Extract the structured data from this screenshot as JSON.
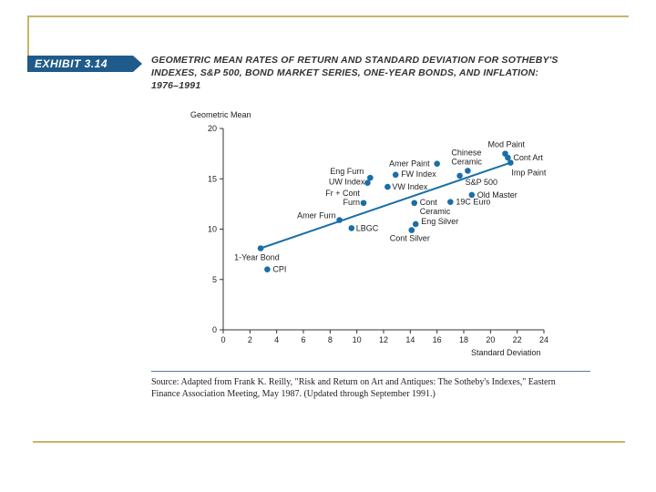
{
  "exhibit": {
    "label": "EXHIBIT 3.14",
    "title_lines": [
      "GEOMETRIC MEAN RATES OF RETURN AND STANDARD DEVIATION FOR SOTHEBY'S",
      "INDEXES, S&P 500, BOND MARKET SERIES, ONE-YEAR BONDS, AND INFLATION:",
      "1976–1991"
    ]
  },
  "source_lines": [
    "Source: Adapted from Frank K. Reilly, \"Risk and Return on Art and Antiques: The Sotheby's Indexes,\" Eastern",
    "Finance Association Meeting, May 1987. (Updated through September 1991.)"
  ],
  "colors": {
    "frame": "#c8b46a",
    "exhibit_bg": "#1f5b8a",
    "point": "#1a6ea8",
    "line": "#1a6ea8",
    "axis": "#333333"
  },
  "chart_data": {
    "type": "scatter",
    "title": "GEOMETRIC MEAN RATES OF RETURN AND STANDARD DEVIATION FOR SOTHEBY'S INDEXES, S&P 500, BOND MARKET SERIES, ONE-YEAR BONDS, AND INFLATION: 1976–1991",
    "xlabel": "Standard Deviation",
    "ylabel": "Geometric Mean",
    "xlim": [
      0,
      24
    ],
    "ylim": [
      0,
      20
    ],
    "xticks": [
      "0",
      "2",
      "4",
      "6",
      "8",
      "10",
      "12",
      "14",
      "16",
      "18",
      "20",
      "22",
      "24"
    ],
    "yticks": [
      "0",
      "5",
      "10",
      "15",
      "20"
    ],
    "points": [
      {
        "label": "CPI",
        "x": 3.3,
        "y": 6.0
      },
      {
        "label": "1-Year Bond",
        "x": 2.8,
        "y": 8.1
      },
      {
        "label": "Amer Furn",
        "x": 8.7,
        "y": 10.9
      },
      {
        "label": "LBGC",
        "x": 9.6,
        "y": 10.1
      },
      {
        "label": "Fr + Cont Furn",
        "x": 10.5,
        "y": 12.6
      },
      {
        "label": "UW Index",
        "x": 10.8,
        "y": 14.6
      },
      {
        "label": "Eng Furn",
        "x": 11.0,
        "y": 15.1
      },
      {
        "label": "FW Index",
        "x": 12.9,
        "y": 15.4
      },
      {
        "label": "VW Index",
        "x": 12.3,
        "y": 14.2
      },
      {
        "label": "Cont Ceramic",
        "x": 14.3,
        "y": 12.6
      },
      {
        "label": "Eng Silver",
        "x": 14.4,
        "y": 10.5
      },
      {
        "label": "Cont Silver",
        "x": 14.1,
        "y": 9.9
      },
      {
        "label": "Amer Paint",
        "x": 16.0,
        "y": 16.5
      },
      {
        "label": "19C Euro",
        "x": 17.0,
        "y": 12.7
      },
      {
        "label": "Chinese Ceramic",
        "x": 18.3,
        "y": 15.8
      },
      {
        "label": "S&P 500",
        "x": 17.7,
        "y": 15.3
      },
      {
        "label": "Old Master",
        "x": 18.6,
        "y": 13.4
      },
      {
        "label": "Mod Paint",
        "x": 21.1,
        "y": 17.5
      },
      {
        "label": "Cont Art",
        "x": 21.3,
        "y": 17.1
      },
      {
        "label": "Imp Paint",
        "x": 21.5,
        "y": 16.6
      }
    ],
    "trend_line": {
      "x": [
        2.8,
        21.5
      ],
      "y": [
        8.1,
        16.6
      ]
    }
  }
}
